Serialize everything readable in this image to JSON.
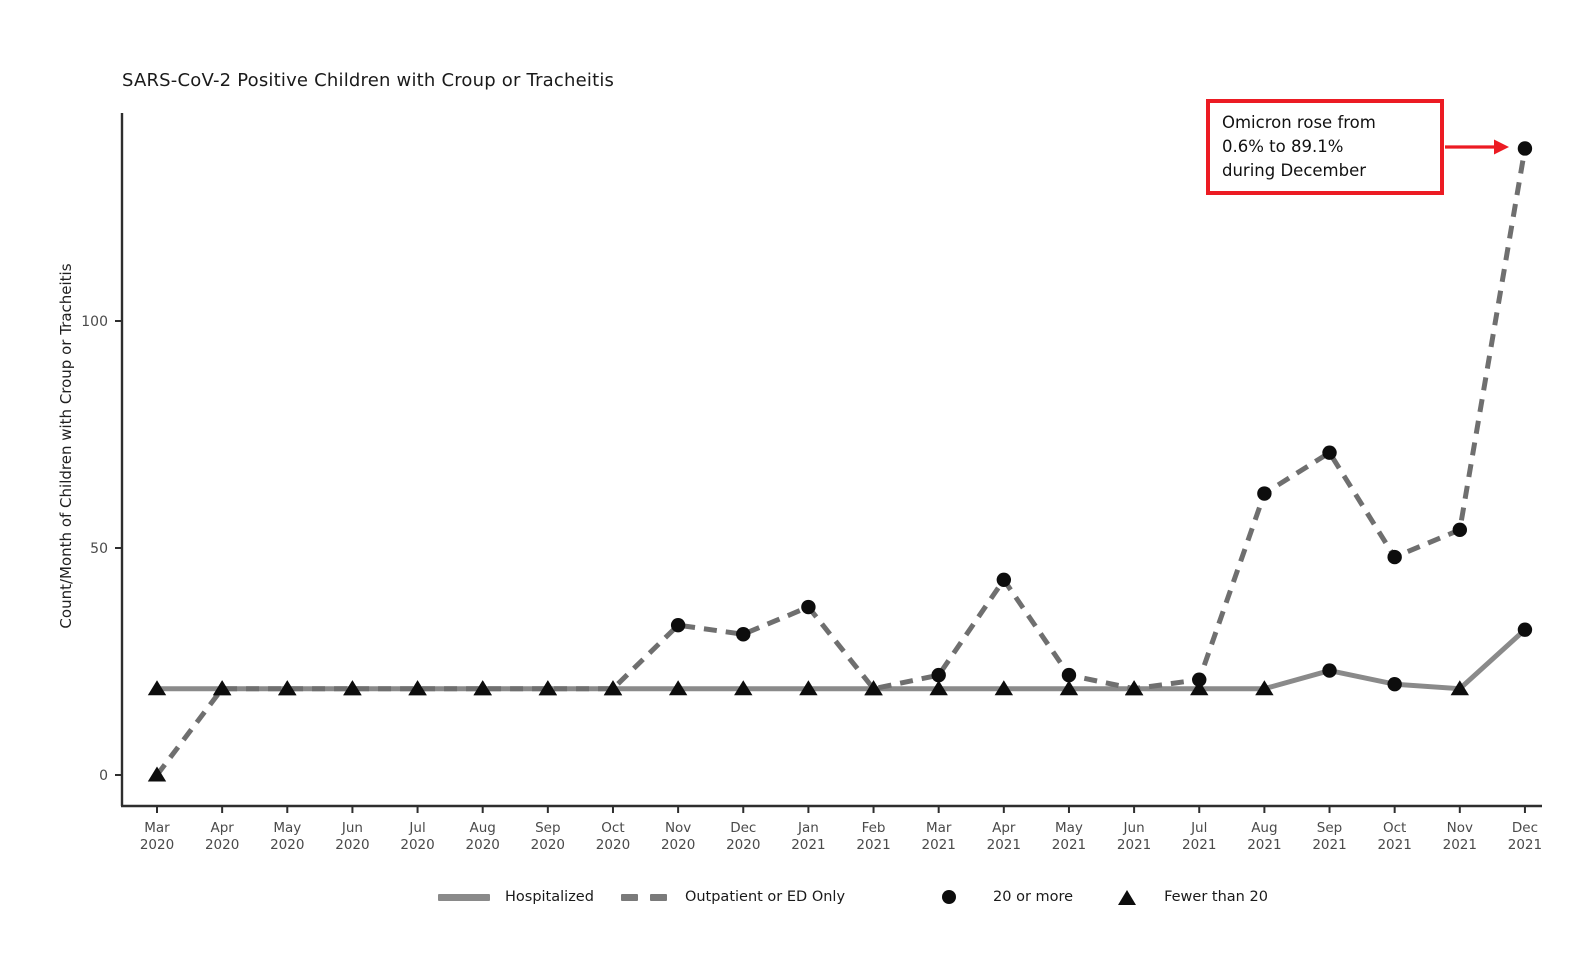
{
  "chart_data": {
    "type": "line",
    "title": "SARS-CoV-2 Positive Children with Croup or Tracheitis",
    "ylabel": "Count/Month of Children with Croup or Tracheitis",
    "xlabel": "",
    "y_axis": {
      "ticks": [
        0,
        50,
        100
      ],
      "range": [
        0,
        145
      ],
      "grid": false
    },
    "categories": [
      {
        "month": "Mar",
        "year": "2020"
      },
      {
        "month": "Apr",
        "year": "2020"
      },
      {
        "month": "May",
        "year": "2020"
      },
      {
        "month": "Jun",
        "year": "2020"
      },
      {
        "month": "Jul",
        "year": "2020"
      },
      {
        "month": "Aug",
        "year": "2020"
      },
      {
        "month": "Sep",
        "year": "2020"
      },
      {
        "month": "Oct",
        "year": "2020"
      },
      {
        "month": "Nov",
        "year": "2020"
      },
      {
        "month": "Dec",
        "year": "2020"
      },
      {
        "month": "Jan",
        "year": "2021"
      },
      {
        "month": "Feb",
        "year": "2021"
      },
      {
        "month": "Mar",
        "year": "2021"
      },
      {
        "month": "Apr",
        "year": "2021"
      },
      {
        "month": "May",
        "year": "2021"
      },
      {
        "month": "Jun",
        "year": "2021"
      },
      {
        "month": "Jul",
        "year": "2021"
      },
      {
        "month": "Aug",
        "year": "2021"
      },
      {
        "month": "Sep",
        "year": "2021"
      },
      {
        "month": "Oct",
        "year": "2021"
      },
      {
        "month": "Nov",
        "year": "2021"
      },
      {
        "month": "Dec",
        "year": "2021"
      }
    ],
    "series": [
      {
        "name": "Hospitalized",
        "line_style": "solid",
        "color": "#8a8a8a",
        "values": [
          19,
          19,
          19,
          19,
          19,
          19,
          19,
          19,
          19,
          19,
          19,
          19,
          19,
          19,
          19,
          19,
          19,
          19,
          23,
          20,
          19,
          32
        ],
        "markers": [
          "triangle",
          "triangle",
          "triangle",
          "triangle",
          "triangle",
          "triangle",
          "triangle",
          "triangle",
          "triangle",
          "triangle",
          "triangle",
          "triangle",
          "triangle",
          "triangle",
          "triangle",
          "triangle",
          "triangle",
          "triangle",
          "circle",
          "circle",
          "triangle",
          "circle"
        ]
      },
      {
        "name": "Outpatient or ED Only",
        "line_style": "dashed",
        "color": "#6f6f6f",
        "values": [
          0,
          19,
          19,
          19,
          19,
          19,
          19,
          19,
          33,
          31,
          37,
          19,
          22,
          43,
          22,
          19,
          21,
          62,
          71,
          48,
          54,
          138
        ],
        "markers": [
          "triangle",
          "triangle",
          "triangle",
          "triangle",
          "triangle",
          "triangle",
          "triangle",
          "triangle",
          "circle",
          "circle",
          "circle",
          "triangle",
          "circle",
          "circle",
          "circle",
          "triangle",
          "circle",
          "circle",
          "circle",
          "circle",
          "circle",
          "circle"
        ]
      }
    ],
    "marker_meaning": {
      "circle": "20 or more",
      "triangle": "Fewer than 20"
    },
    "legend": [
      {
        "label": "Hospitalized",
        "swatch": "solid-line"
      },
      {
        "label": "Outpatient or ED Only",
        "swatch": "dashed-line"
      },
      {
        "label": "20 or more",
        "swatch": "circle"
      },
      {
        "label": "Fewer than 20",
        "swatch": "triangle"
      }
    ],
    "annotation": {
      "lines": [
        "Omicron rose from",
        "0.6% to 89.1%",
        "during December"
      ],
      "border_color": "#ec1b23",
      "arrow_color": "#ec1b23",
      "points_to": {
        "series": "Outpatient or ED Only",
        "category": "Dec 2021",
        "value": 138
      }
    },
    "colors": {
      "marker": "#0d0d0d",
      "axis": "#2e2e2e",
      "tick_label": "#4a4a4a"
    },
    "legend_position": "bottom"
  }
}
